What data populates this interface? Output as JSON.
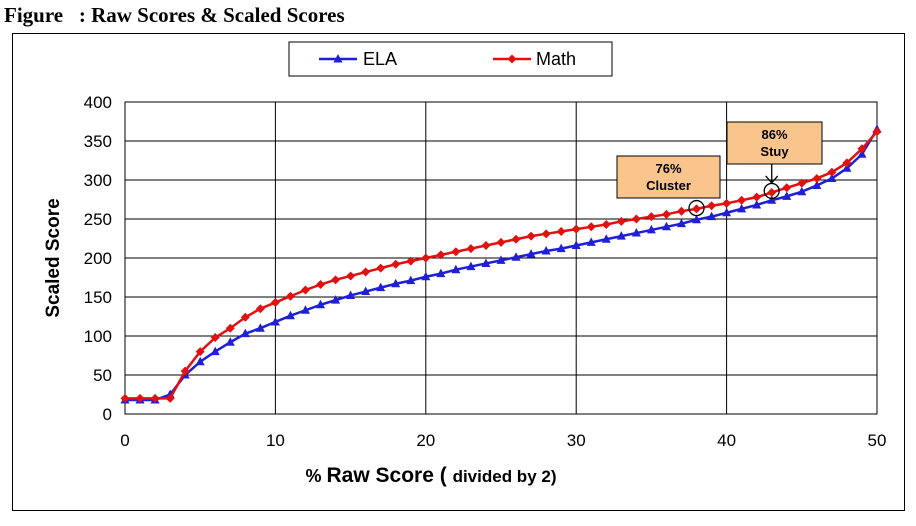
{
  "figure_title": "Figure   : Raw Scores & Scaled Scores",
  "chart_data": {
    "type": "line",
    "xlabel_parts": [
      "% ",
      "Raw Score",
      " ( ",
      "divided by 2",
      ")"
    ],
    "ylabel": "Scaled Score",
    "xlim": [
      0,
      50
    ],
    "ylim": [
      0,
      400
    ],
    "xticks": [
      0,
      10,
      20,
      30,
      40,
      50
    ],
    "yticks": [
      0,
      50,
      100,
      150,
      200,
      250,
      300,
      350,
      400
    ],
    "grid": true,
    "legend_position": "top-center",
    "x": [
      0,
      1,
      2,
      3,
      4,
      5,
      6,
      7,
      8,
      9,
      10,
      11,
      12,
      13,
      14,
      15,
      16,
      17,
      18,
      19,
      20,
      21,
      22,
      23,
      24,
      25,
      26,
      27,
      28,
      29,
      30,
      31,
      32,
      33,
      34,
      35,
      36,
      37,
      38,
      39,
      40,
      41,
      42,
      43,
      44,
      45,
      46,
      47,
      48,
      49,
      50
    ],
    "series": [
      {
        "name": "ELA",
        "color": "#1f1fd8",
        "marker": "triangle",
        "values": [
          18,
          18,
          18,
          25,
          50,
          67,
          80,
          92,
          103,
          110,
          118,
          126,
          133,
          140,
          146,
          152,
          157,
          162,
          167,
          171,
          176,
          180,
          185,
          189,
          193,
          197,
          201,
          205,
          209,
          212,
          216,
          220,
          224,
          228,
          232,
          236,
          240,
          244,
          249,
          253,
          258,
          263,
          268,
          274,
          279,
          285,
          293,
          302,
          315,
          333,
          365
        ]
      },
      {
        "name": "Math",
        "color": "#e21010",
        "marker": "diamond",
        "values": [
          20,
          20,
          20,
          20,
          55,
          80,
          98,
          110,
          124,
          135,
          143,
          151,
          159,
          166,
          172,
          177,
          182,
          187,
          192,
          196,
          200,
          204,
          208,
          212,
          216,
          220,
          224,
          228,
          231,
          234,
          237,
          240,
          243,
          247,
          250,
          253,
          256,
          260,
          263,
          267,
          270,
          274,
          278,
          284,
          290,
          296,
          302,
          310,
          322,
          340,
          362
        ]
      }
    ],
    "annotations": [
      {
        "line1": "76%",
        "line2": "Cluster",
        "x": 38,
        "y": 264
      },
      {
        "line1": "86%",
        "line2": "Stuy",
        "x": 43,
        "y": 286
      }
    ],
    "annotation_box_color": "#f9c58d"
  }
}
